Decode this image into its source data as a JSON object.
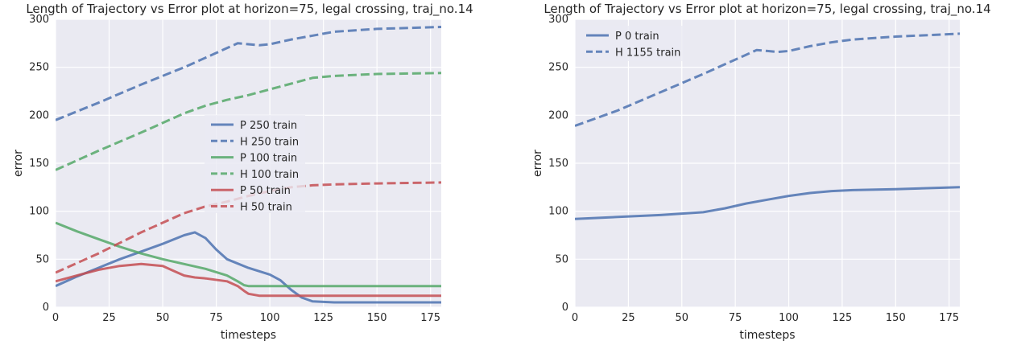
{
  "chart_data": [
    {
      "type": "line",
      "title": "Length of Trajectory vs Error plot at horizon=75, legal crossing, traj_no.14",
      "xlabel": "timesteps",
      "ylabel": "error",
      "xlim": [
        0,
        180
      ],
      "ylim": [
        0,
        300
      ],
      "xticks": [
        0,
        25,
        50,
        75,
        100,
        125,
        150,
        175
      ],
      "yticks": [
        0,
        50,
        100,
        150,
        200,
        250,
        300
      ],
      "grid": true,
      "legend_position": "center",
      "series": [
        {
          "name": "P 250 train",
          "color": "#4c72b0",
          "style": "solid",
          "x": [
            0,
            10,
            20,
            30,
            40,
            50,
            60,
            65,
            70,
            75,
            80,
            90,
            100,
            105,
            110,
            115,
            120,
            130,
            150,
            180
          ],
          "y": [
            22,
            32,
            41,
            50,
            58,
            66,
            75,
            78,
            72,
            60,
            50,
            41,
            34,
            28,
            18,
            10,
            6,
            5,
            5,
            5
          ]
        },
        {
          "name": "H 250 train",
          "color": "#4c72b0",
          "style": "dashed",
          "x": [
            0,
            20,
            40,
            60,
            75,
            80,
            85,
            90,
            95,
            100,
            110,
            120,
            130,
            150,
            180
          ],
          "y": [
            195,
            213,
            232,
            250,
            265,
            270,
            275,
            274,
            273,
            274,
            279,
            283,
            287,
            290,
            292
          ]
        },
        {
          "name": "P 100 train",
          "color": "#55a868",
          "style": "solid",
          "x": [
            0,
            10,
            20,
            30,
            40,
            50,
            60,
            70,
            80,
            85,
            88,
            90,
            92,
            95,
            100,
            120,
            150,
            180
          ],
          "y": [
            88,
            79,
            71,
            63,
            56,
            50,
            45,
            40,
            33,
            27,
            23,
            22,
            22,
            22,
            22,
            22,
            22,
            22
          ]
        },
        {
          "name": "H 100 train",
          "color": "#55a868",
          "style": "dashed",
          "x": [
            0,
            20,
            40,
            60,
            70,
            80,
            90,
            100,
            110,
            120,
            130,
            150,
            180
          ],
          "y": [
            143,
            163,
            182,
            202,
            210,
            216,
            221,
            227,
            233,
            239,
            241,
            243,
            244
          ]
        },
        {
          "name": "P 50 train",
          "color": "#c44e52",
          "style": "solid",
          "x": [
            0,
            10,
            20,
            30,
            40,
            50,
            55,
            60,
            65,
            70,
            80,
            85,
            88,
            90,
            95,
            100,
            120,
            150,
            180
          ],
          "y": [
            27,
            33,
            39,
            43,
            45,
            43,
            38,
            33,
            31,
            30,
            27,
            22,
            17,
            14,
            12,
            12,
            12,
            12,
            12
          ]
        },
        {
          "name": "H 50 train",
          "color": "#c44e52",
          "style": "dashed",
          "x": [
            0,
            20,
            40,
            60,
            70,
            80,
            90,
            100,
            110,
            120,
            130,
            150,
            180
          ],
          "y": [
            36,
            56,
            78,
            98,
            105,
            110,
            116,
            121,
            125,
            127,
            128,
            129,
            130
          ]
        }
      ]
    },
    {
      "type": "line",
      "title": "Length of Trajectory vs Error plot at horizon=75, legal crossing, traj_no.14",
      "xlabel": "timesteps",
      "ylabel": "error",
      "xlim": [
        0,
        180
      ],
      "ylim": [
        0,
        300
      ],
      "xticks": [
        0,
        25,
        50,
        75,
        100,
        125,
        150,
        175
      ],
      "yticks": [
        0,
        50,
        100,
        150,
        200,
        250,
        300
      ],
      "grid": true,
      "legend_position": "upper left",
      "series": [
        {
          "name": "P 0 train",
          "color": "#4c72b0",
          "style": "solid",
          "x": [
            0,
            20,
            40,
            60,
            70,
            80,
            90,
            100,
            110,
            120,
            130,
            150,
            180
          ],
          "y": [
            92,
            94,
            96,
            99,
            103,
            108,
            112,
            116,
            119,
            121,
            122,
            123,
            125
          ]
        },
        {
          "name": "H 1155 train",
          "color": "#4c72b0",
          "style": "dashed",
          "x": [
            0,
            20,
            40,
            60,
            75,
            80,
            85,
            90,
            95,
            100,
            110,
            120,
            130,
            150,
            180
          ],
          "y": [
            189,
            205,
            224,
            243,
            258,
            263,
            268,
            267,
            266,
            267,
            272,
            276,
            279,
            282,
            285
          ]
        }
      ]
    }
  ]
}
